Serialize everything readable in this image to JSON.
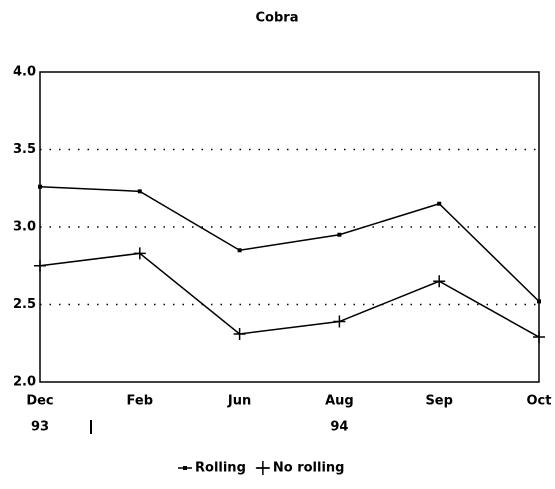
{
  "chart_data": {
    "type": "line",
    "title": "Cobra",
    "categories": [
      "Dec",
      "Feb",
      "Jun",
      "Aug",
      "Sep",
      "Oct"
    ],
    "x_groups": [
      "93",
      null,
      null,
      "94",
      null,
      null
    ],
    "series": [
      {
        "name": "Rolling",
        "color": "#000000",
        "marker": "dot",
        "values": [
          3.26,
          3.23,
          2.85,
          2.95,
          3.15,
          2.52
        ]
      },
      {
        "name": "No rolling",
        "color": "#000000",
        "marker": "plus",
        "values": [
          2.75,
          2.83,
          2.31,
          2.39,
          2.65,
          2.29
        ]
      }
    ],
    "ylim": [
      2.0,
      4.0
    ],
    "yticks": [
      {
        "value": 2.0,
        "label": "2.0"
      },
      {
        "value": 2.5,
        "label": "2.5"
      },
      {
        "value": 3.0,
        "label": "3.0"
      },
      {
        "value": 3.5,
        "label": "3.5"
      },
      {
        "value": 4.0,
        "label": "4.0"
      }
    ],
    "grid": true,
    "legend": "bottom"
  }
}
